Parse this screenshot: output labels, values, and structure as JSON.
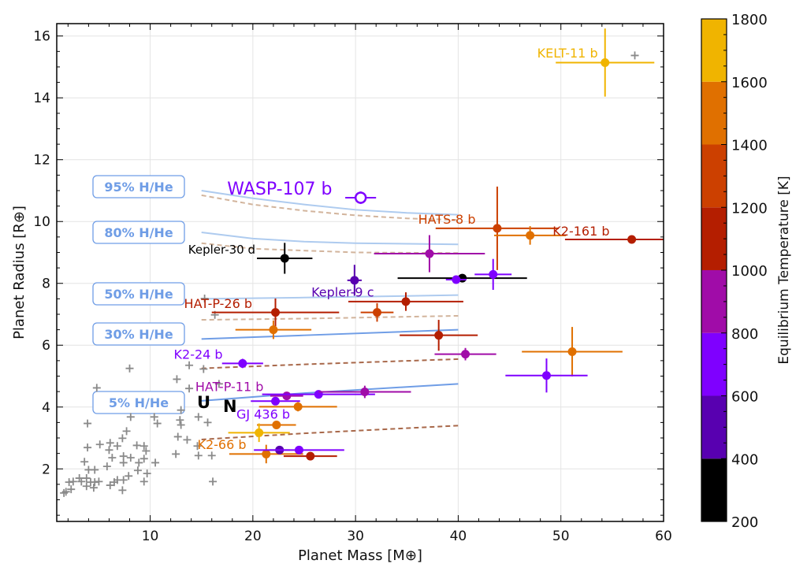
{
  "chart_data": {
    "type": "scatter",
    "title": "",
    "xlabel": "Planet Mass [M⊕]",
    "ylabel": "Planet Radius [R⊕]",
    "xlim": [
      0.9,
      60
    ],
    "ylim": [
      0.3,
      16.4
    ],
    "x_ticks": [
      10,
      20,
      30,
      40,
      50,
      60
    ],
    "y_ticks": [
      2,
      4,
      6,
      8,
      10,
      12,
      14,
      16
    ],
    "grid": true,
    "colorbar": {
      "label": "Equilibrium Temperature [K]",
      "ticks": [
        200,
        400,
        600,
        800,
        1000,
        1200,
        1400,
        1600,
        1800
      ],
      "bins": [
        {
          "min": 200,
          "max": 400,
          "color": "#000000"
        },
        {
          "min": 400,
          "max": 600,
          "color": "#5800b0"
        },
        {
          "min": 600,
          "max": 800,
          "color": "#7f00ff"
        },
        {
          "min": 800,
          "max": 1000,
          "color": "#a00ca8"
        },
        {
          "min": 1000,
          "max": 1200,
          "color": "#b41e00"
        },
        {
          "min": 1200,
          "max": 1400,
          "color": "#cc4000"
        },
        {
          "min": 1400,
          "max": 1600,
          "color": "#e07000"
        },
        {
          "min": 1600,
          "max": 1800,
          "color": "#f0b400"
        }
      ]
    },
    "planets": [
      {
        "name": "KELT-11 b",
        "mass": 54.3,
        "radius": 15.14,
        "xerr": 4.8,
        "yerr": 1.1,
        "teq": 1700
      },
      {
        "name": "WASP-107 b",
        "mass": 30.5,
        "radius": 10.77,
        "xerr": 1.5,
        "yerr": 0.2,
        "teq": 700,
        "open": true
      },
      {
        "name": "HATS-8 b",
        "mass": 43.8,
        "radius": 9.78,
        "xerr": 6.0,
        "yerr": 1.35,
        "teq": 1300
      },
      {
        "name": "",
        "mass": 47.0,
        "radius": 9.55,
        "xerr": 3.5,
        "yerr": 0.3,
        "teq": 1500
      },
      {
        "name": "K2-161 b",
        "mass": 56.9,
        "radius": 9.42,
        "xerr": 6.5,
        "yerr": 0.0,
        "teq": 1100
      },
      {
        "name": "Kepler-30 d",
        "mass": 23.1,
        "radius": 8.81,
        "xerr": 2.7,
        "yerr": 0.5,
        "teq": 300
      },
      {
        "name": "",
        "mass": 37.2,
        "radius": 8.96,
        "xerr": 5.4,
        "yerr": 0.6,
        "teq": 900
      },
      {
        "name": "Kepler-9 c",
        "mass": 29.9,
        "radius": 8.1,
        "xerr": 0.7,
        "yerr": 0.5,
        "teq": 500
      },
      {
        "name": "",
        "mass": 40.4,
        "radius": 8.17,
        "xerr": 6.3,
        "yerr": 0.05,
        "teq": 300
      },
      {
        "name": "",
        "mass": 39.8,
        "radius": 8.12,
        "xerr": 1.0,
        "yerr": 0.05,
        "teq": 700
      },
      {
        "name": "",
        "mass": 43.4,
        "radius": 8.29,
        "xerr": 1.8,
        "yerr": 0.5,
        "teq": 700
      },
      {
        "name": "HAT-P-26 b",
        "mass": 22.2,
        "radius": 7.06,
        "xerr": 6.2,
        "yerr": 0.45,
        "teq": 1100
      },
      {
        "name": "",
        "mass": 22.0,
        "radius": 6.5,
        "xerr": 3.7,
        "yerr": 0.3,
        "teq": 1500
      },
      {
        "name": "",
        "mass": 32.1,
        "radius": 7.06,
        "xerr": 1.6,
        "yerr": 0.3,
        "teq": 1300
      },
      {
        "name": "",
        "mass": 34.9,
        "radius": 7.41,
        "xerr": 5.6,
        "yerr": 0.3,
        "teq": 1100
      },
      {
        "name": "",
        "mass": 38.1,
        "radius": 6.32,
        "xerr": 3.8,
        "yerr": 0.5,
        "teq": 1100
      },
      {
        "name": "",
        "mass": 40.7,
        "radius": 5.71,
        "xerr": 3.0,
        "yerr": 0.2,
        "teq": 900
      },
      {
        "name": "",
        "mass": 51.1,
        "radius": 5.79,
        "xerr": 4.9,
        "yerr": 0.8,
        "teq": 1500
      },
      {
        "name": "",
        "mass": 48.6,
        "radius": 5.02,
        "xerr": 4.0,
        "yerr": 0.55,
        "teq": 700
      },
      {
        "name": "K2-24 b",
        "mass": 19.0,
        "radius": 5.41,
        "xerr": 2.0,
        "yerr": 0.15,
        "teq": 700
      },
      {
        "name": "HAT-P-11 b",
        "mass": 23.3,
        "radius": 4.36,
        "xerr": 1.6,
        "yerr": 0.1,
        "teq": 900
      },
      {
        "name": "",
        "mass": 26.4,
        "radius": 4.41,
        "xerr": 5.5,
        "yerr": 0.1,
        "teq": 700
      },
      {
        "name": "",
        "mass": 30.9,
        "radius": 4.49,
        "xerr": 4.5,
        "yerr": 0.2,
        "teq": 900
      },
      {
        "name": "GJ 436 b",
        "mass": 22.2,
        "radius": 4.19,
        "xerr": 2.4,
        "yerr": 0.1,
        "teq": 700
      },
      {
        "name": "",
        "mass": 24.4,
        "radius": 4.01,
        "xerr": 3.8,
        "yerr": 0.15,
        "teq": 1500
      },
      {
        "name": "",
        "mass": 22.3,
        "radius": 3.42,
        "xerr": 1.9,
        "yerr": 0.1,
        "teq": 1500
      },
      {
        "name": "",
        "mass": 20.6,
        "radius": 3.17,
        "xerr": 3.0,
        "yerr": 0.3,
        "teq": 1700
      },
      {
        "name": "K2-66 b",
        "mass": 21.3,
        "radius": 2.48,
        "xerr": 3.6,
        "yerr": 0.3,
        "teq": 1500
      },
      {
        "name": "",
        "mass": 22.6,
        "radius": 2.61,
        "xerr": 1.0,
        "yerr": 0.1,
        "teq": 500
      },
      {
        "name": "",
        "mass": 24.5,
        "radius": 2.61,
        "xerr": 4.4,
        "yerr": 0.1,
        "teq": 700
      },
      {
        "name": "",
        "mass": 25.6,
        "radius": 2.41,
        "xerr": 2.6,
        "yerr": 0.1,
        "teq": 1100
      }
    ],
    "background_planets": [
      [
        8.0,
        5.25
      ],
      [
        4.8,
        4.62
      ],
      [
        13.8,
        5.35
      ],
      [
        15.2,
        5.23
      ],
      [
        13.8,
        4.6
      ],
      [
        16.7,
        4.75
      ],
      [
        3.9,
        3.47
      ],
      [
        8.1,
        3.68
      ],
      [
        10.4,
        3.68
      ],
      [
        10.7,
        3.47
      ],
      [
        12.9,
        3.58
      ],
      [
        13.0,
        3.42
      ],
      [
        14.7,
        3.68
      ],
      [
        15.6,
        3.5
      ],
      [
        12.7,
        3.04
      ],
      [
        13.6,
        2.94
      ],
      [
        14.6,
        2.74
      ],
      [
        12.5,
        2.48
      ],
      [
        14.7,
        2.43
      ],
      [
        16.0,
        2.43
      ],
      [
        16.1,
        1.59
      ],
      [
        7.7,
        3.22
      ],
      [
        7.3,
        2.99
      ],
      [
        6.1,
        2.84
      ],
      [
        6.8,
        2.74
      ],
      [
        5.1,
        2.79
      ],
      [
        3.9,
        2.69
      ],
      [
        6.0,
        2.61
      ],
      [
        8.7,
        2.76
      ],
      [
        9.4,
        2.74
      ],
      [
        9.6,
        2.58
      ],
      [
        6.3,
        2.36
      ],
      [
        7.4,
        2.41
      ],
      [
        8.1,
        2.36
      ],
      [
        9.4,
        2.33
      ],
      [
        3.6,
        2.23
      ],
      [
        5.8,
        2.08
      ],
      [
        7.4,
        2.2
      ],
      [
        8.9,
        2.2
      ],
      [
        10.5,
        2.2
      ],
      [
        8.8,
        1.95
      ],
      [
        9.7,
        1.85
      ],
      [
        4.0,
        1.97
      ],
      [
        4.6,
        1.97
      ],
      [
        3.1,
        1.7
      ],
      [
        2.5,
        1.59
      ],
      [
        2.1,
        1.57
      ],
      [
        1.8,
        1.26
      ],
      [
        2.3,
        1.34
      ],
      [
        3.8,
        1.7
      ],
      [
        4.2,
        1.57
      ],
      [
        4.6,
        1.57
      ],
      [
        4.5,
        1.39
      ],
      [
        3.8,
        1.44
      ],
      [
        6.1,
        1.47
      ],
      [
        6.8,
        1.64
      ],
      [
        6.5,
        1.57
      ],
      [
        7.4,
        1.64
      ],
      [
        7.3,
        1.31
      ],
      [
        7.9,
        1.77
      ],
      [
        9.4,
        1.59
      ],
      [
        5.0,
        1.59
      ],
      [
        3.3,
        1.59
      ],
      [
        1.6,
        1.22
      ],
      [
        57.2,
        15.37
      ],
      [
        15.3,
        7.51
      ],
      [
        16.3,
        6.98
      ],
      [
        12.6,
        4.9
      ],
      [
        13.0,
        3.9
      ]
    ],
    "models": [
      {
        "label": "95% H/He",
        "solid": [
          [
            15,
            11.0
          ],
          [
            20,
            10.75
          ],
          [
            25,
            10.55
          ],
          [
            30,
            10.38
          ],
          [
            35,
            10.28
          ],
          [
            40,
            10.22
          ]
        ],
        "dashed": [
          [
            15,
            10.85
          ],
          [
            20,
            10.55
          ],
          [
            25,
            10.35
          ],
          [
            30,
            10.2
          ],
          [
            35,
            10.1
          ],
          [
            40,
            10.05
          ]
        ]
      },
      {
        "label": "80% H/He",
        "solid": [
          [
            15,
            9.65
          ],
          [
            20,
            9.45
          ],
          [
            25,
            9.35
          ],
          [
            30,
            9.3
          ],
          [
            40,
            9.26
          ]
        ],
        "dashed": [
          [
            15,
            9.3
          ],
          [
            20,
            9.12
          ],
          [
            30,
            9.0
          ],
          [
            40,
            8.98
          ]
        ]
      },
      {
        "label": "50% H/He",
        "solid": [
          [
            15,
            7.5
          ],
          [
            25,
            7.54
          ],
          [
            40,
            7.62
          ]
        ],
        "dashed": [
          [
            15,
            6.82
          ],
          [
            25,
            6.86
          ],
          [
            40,
            6.95
          ]
        ]
      },
      {
        "label": "30% H/He",
        "solid": [
          [
            15,
            6.2
          ],
          [
            25,
            6.32
          ],
          [
            40,
            6.5
          ]
        ],
        "dashed": [
          [
            15,
            5.25
          ],
          [
            25,
            5.38
          ],
          [
            40,
            5.55
          ]
        ]
      },
      {
        "label": "5% H/He",
        "solid": [
          [
            15,
            4.2
          ],
          [
            25,
            4.45
          ],
          [
            40,
            4.75
          ]
        ],
        "dashed": [
          [
            15,
            2.95
          ],
          [
            25,
            3.15
          ],
          [
            40,
            3.4
          ]
        ]
      }
    ],
    "annotations": [
      "U",
      "N"
    ]
  }
}
